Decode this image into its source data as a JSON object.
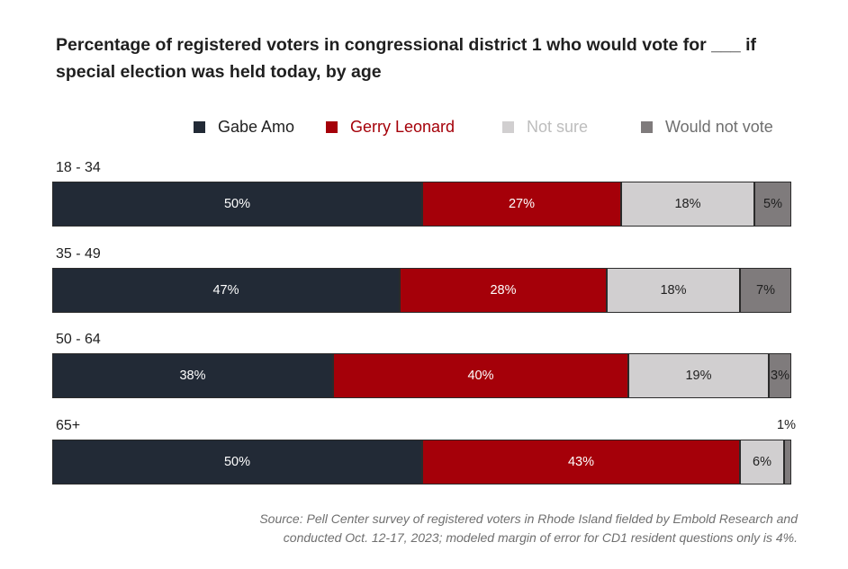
{
  "chart_data": {
    "type": "bar",
    "orientation": "horizontal",
    "stacked": true,
    "title": "Percentage of registered voters in congressional district 1 who would vote for ___ if special election was held today, by age",
    "categories": [
      "18 - 34",
      "35 - 49",
      "50 - 64",
      "65+"
    ],
    "series": [
      {
        "name": "Gabe Amo",
        "color": "#222a36",
        "label_color": "#ffffff",
        "values": [
          50,
          47,
          38,
          50
        ]
      },
      {
        "name": "Gerry Leonard",
        "color": "#a50009",
        "label_color": "#ffffff",
        "values": [
          27,
          28,
          40,
          43
        ]
      },
      {
        "name": "Not sure",
        "color": "#d1cfd0",
        "label_color": "#1f1f1f",
        "values": [
          18,
          18,
          19,
          6
        ]
      },
      {
        "name": "Would not vote",
        "color": "#7f7b7c",
        "label_color": "#1f1f1f",
        "values": [
          5,
          7,
          3,
          1
        ]
      }
    ],
    "value_suffix": "%",
    "xlim": [
      0,
      100
    ],
    "legend_position": "top",
    "grid": false
  },
  "source_lines": [
    "Source: Pell Center survey of registered voters in Rhode Island fielded by Embold Research and",
    "conducted Oct. 12-17, 2023; modeled margin of error for CD1 resident questions only is 4%."
  ]
}
